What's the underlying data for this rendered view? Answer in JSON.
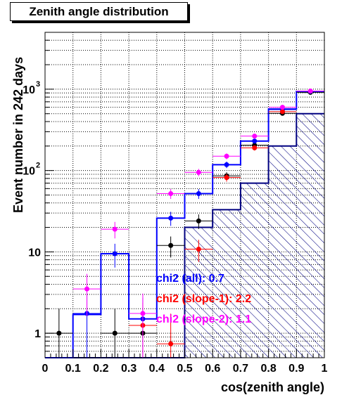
{
  "chart_data": {
    "type": "histogram",
    "title": "Zenith angle distribution",
    "xlabel": "cos(zenith angle)",
    "ylabel": "Event number in 242 days",
    "xlim": [
      0,
      1
    ],
    "ylim": [
      0.5,
      5000
    ],
    "yscale": "log",
    "grid": true,
    "x_ticks": [
      "0",
      "0.1",
      "0.2",
      "0.3",
      "0.4",
      "0.5",
      "0.6",
      "0.7",
      "0.8",
      "0.9",
      "1"
    ],
    "y_ticks": [
      {
        "value": 1,
        "label": "1"
      },
      {
        "value": 10,
        "label": "10"
      },
      {
        "value": 100,
        "label": "10",
        "exp": "2"
      },
      {
        "value": 1000,
        "label": "10",
        "exp": "3"
      }
    ],
    "bin_edges": [
      0,
      0.1,
      0.2,
      0.3,
      0.4,
      0.5,
      0.6,
      0.7,
      0.8,
      0.9,
      1.0
    ],
    "histograms": [
      {
        "style": "hatched",
        "color": "#000080",
        "values": [
          0.5,
          0.5,
          0.5,
          0.5,
          0.5,
          20,
          33,
          70,
          200,
          500
        ]
      },
      {
        "style": "line",
        "color": "#0000ff",
        "values": [
          0.5,
          1.7,
          9.5,
          1.5,
          26,
          52,
          118,
          230,
          570,
          940
        ]
      }
    ],
    "series": [
      {
        "color": "#000000",
        "x": [
          0.05,
          0.15,
          0.25,
          0.35,
          0.45,
          0.55,
          0.65,
          0.75,
          0.85,
          0.95
        ],
        "y": [
          1.0,
          null,
          1.0,
          1.0,
          12,
          24,
          86,
          205,
          505,
          915
        ]
      },
      {
        "color": "#0000ff",
        "x": [
          0.15,
          0.25,
          0.35,
          0.45,
          0.55,
          0.65,
          0.75,
          0.85,
          0.95
        ],
        "y": [
          1.75,
          9.5,
          1.5,
          26,
          52,
          118,
          230,
          560,
          940
        ]
      },
      {
        "color": "#ff0000",
        "x": [
          0.35,
          0.45,
          0.55,
          0.65,
          0.75,
          0.85
        ],
        "y": [
          1.25,
          0.74,
          10.8,
          82,
          190,
          530
        ]
      },
      {
        "color": "#ff00ff",
        "x": [
          0.15,
          0.25,
          0.35,
          0.45,
          0.55,
          0.65,
          0.75,
          0.85,
          0.95
        ],
        "y": [
          3.5,
          19,
          1.75,
          52,
          95,
          150,
          265,
          600,
          950
        ]
      }
    ],
    "annotations": [
      {
        "text": "chi2 (all): 0.7",
        "color": "#0000ff"
      },
      {
        "text": "chi2 (slope-1): 2.2",
        "color": "#ff0000"
      },
      {
        "text": "chi2 (slope-2): 1.1",
        "color": "#ff00ff"
      }
    ]
  }
}
